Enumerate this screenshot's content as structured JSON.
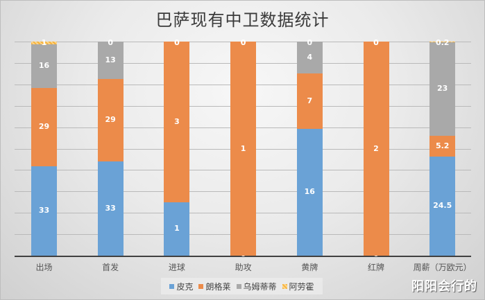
{
  "title": "巴萨现有中卫数据统计",
  "watermark": "阳阳会行的",
  "colors": {
    "皮克": "#6aa2d6",
    "朗格莱": "#ec8b4a",
    "乌姆蒂蒂": "#a9a9a9",
    "阿劳霍": "#f7b33c"
  },
  "legend": [
    {
      "label": "皮克",
      "color": "#6aa2d6"
    },
    {
      "label": "朗格莱",
      "color": "#ec8b4a"
    },
    {
      "label": "乌姆蒂蒂",
      "color": "#a9a9a9"
    },
    {
      "label": "阿劳霍",
      "color": "#f7b33c"
    }
  ],
  "chart_data": {
    "type": "bar",
    "stacking": "percent",
    "title": "巴萨现有中卫数据统计",
    "xlabel": "",
    "ylabel": "",
    "ylim": [
      0,
      100
    ],
    "grid": true,
    "legend_position": "bottom",
    "categories": [
      "出场",
      "首发",
      "进球",
      "助攻",
      "黄牌",
      "红牌",
      "周薪（万欧元）"
    ],
    "series": [
      {
        "name": "皮克",
        "values": [
          33,
          33,
          1,
          0,
          16,
          0,
          24.5
        ]
      },
      {
        "name": "朗格莱",
        "values": [
          29,
          29,
          3,
          1,
          7,
          2,
          5.2
        ]
      },
      {
        "name": "乌姆蒂蒂",
        "values": [
          16,
          13,
          0,
          0,
          4,
          0,
          23
        ]
      },
      {
        "name": "阿劳霍",
        "values": [
          1,
          0,
          0,
          0,
          0,
          0,
          0.2
        ]
      }
    ]
  }
}
